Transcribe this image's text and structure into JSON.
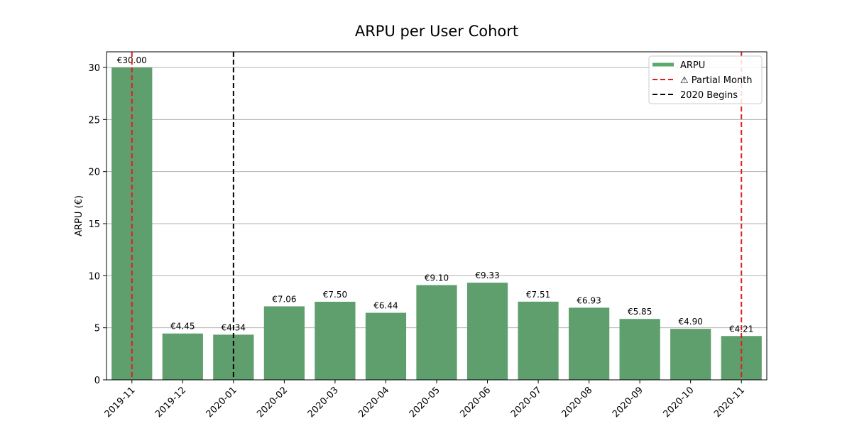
{
  "chart_data": {
    "type": "bar",
    "title": "ARPU per User Cohort",
    "xlabel": "",
    "ylabel": "ARPU (€)",
    "ylim": [
      0,
      31.5
    ],
    "yticks": [
      0,
      5,
      10,
      15,
      20,
      25,
      30
    ],
    "grid": "y",
    "legend_position": "top-right",
    "categories": [
      "2019-11",
      "2019-12",
      "2020-01",
      "2020-02",
      "2020-03",
      "2020-04",
      "2020-05",
      "2020-06",
      "2020-07",
      "2020-08",
      "2020-09",
      "2020-10",
      "2020-11"
    ],
    "series": [
      {
        "name": "ARPU",
        "color": "#5f9f6e",
        "values": [
          30.0,
          4.45,
          4.34,
          7.06,
          7.5,
          6.44,
          9.1,
          9.33,
          7.51,
          6.93,
          5.85,
          4.9,
          4.21
        ],
        "data_labels": [
          "€30.00",
          "€4.45",
          "€4.34",
          "€7.06",
          "€7.50",
          "€6.44",
          "€9.10",
          "€9.33",
          "€7.51",
          "€6.93",
          "€5.85",
          "€4.90",
          "€4.21"
        ]
      }
    ],
    "reference_lines": [
      {
        "name": "⚠ Partial Month",
        "color": "#e41a1c",
        "style": "dashed",
        "categories": [
          "2019-11",
          "2020-11"
        ]
      },
      {
        "name": "2020 Begins",
        "color": "#000000",
        "style": "dashed",
        "categories": [
          "2020-01"
        ]
      }
    ],
    "legend": [
      {
        "label": "ARPU",
        "color": "#5aa86a",
        "style": "solid"
      },
      {
        "label": "⚠ Partial Month",
        "color": "#e41a1c",
        "style": "dashed"
      },
      {
        "label": "2020 Begins",
        "color": "#000000",
        "style": "dashed"
      }
    ]
  }
}
